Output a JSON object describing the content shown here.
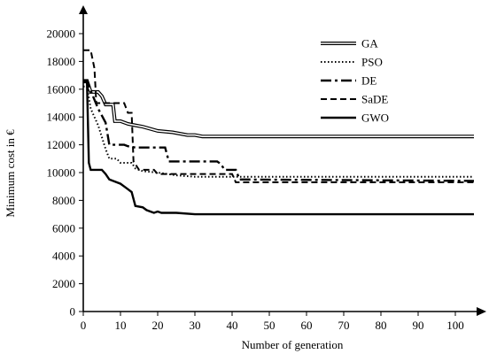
{
  "chart_data": {
    "type": "line",
    "title": "",
    "xlabel": "Number of generation",
    "ylabel": "Minimum cost in €",
    "xlim": [
      0,
      105
    ],
    "ylim": [
      0,
      20000
    ],
    "x_ticks": [
      0,
      10,
      20,
      30,
      40,
      50,
      60,
      70,
      80,
      90,
      100
    ],
    "y_ticks": [
      0,
      2000,
      4000,
      6000,
      8000,
      10000,
      12000,
      14000,
      16000,
      18000,
      20000
    ],
    "grid": false,
    "legend_position": "top-right",
    "series": [
      {
        "name": "GA",
        "style": "double",
        "color": "#000000",
        "points": [
          [
            0,
            16600
          ],
          [
            1,
            16600
          ],
          [
            2,
            15800
          ],
          [
            4,
            15800
          ],
          [
            5,
            15500
          ],
          [
            6,
            14900
          ],
          [
            8,
            14900
          ],
          [
            8.5,
            13700
          ],
          [
            10,
            13700
          ],
          [
            12,
            13500
          ],
          [
            14,
            13400
          ],
          [
            16,
            13300
          ],
          [
            20,
            13000
          ],
          [
            24,
            12900
          ],
          [
            28,
            12700
          ],
          [
            30,
            12700
          ],
          [
            32,
            12600
          ],
          [
            105,
            12600
          ]
        ]
      },
      {
        "name": "PSO",
        "style": "dotted",
        "color": "#000000",
        "points": [
          [
            0,
            16200
          ],
          [
            1,
            16200
          ],
          [
            2,
            14600
          ],
          [
            4,
            13400
          ],
          [
            6,
            11700
          ],
          [
            7,
            11000
          ],
          [
            9,
            11000
          ],
          [
            10,
            10700
          ],
          [
            13,
            10700
          ],
          [
            14,
            10300
          ],
          [
            16,
            10100
          ],
          [
            20,
            10000
          ],
          [
            25,
            9800
          ],
          [
            30,
            9700
          ],
          [
            40,
            9700
          ],
          [
            105,
            9700
          ]
        ]
      },
      {
        "name": "DE",
        "style": "dash-dot",
        "color": "#000000",
        "points": [
          [
            0,
            16600
          ],
          [
            1,
            16600
          ],
          [
            2,
            15900
          ],
          [
            4,
            14600
          ],
          [
            6,
            13600
          ],
          [
            7,
            12000
          ],
          [
            11,
            12000
          ],
          [
            12,
            11900
          ],
          [
            14,
            11800
          ],
          [
            22,
            11800
          ],
          [
            23,
            10800
          ],
          [
            36,
            10800
          ],
          [
            37,
            10600
          ],
          [
            38,
            10200
          ],
          [
            41,
            10200
          ],
          [
            42,
            9500
          ],
          [
            105,
            9400
          ]
        ]
      },
      {
        "name": "SaDE",
        "style": "dashed",
        "color": "#000000",
        "points": [
          [
            0,
            18800
          ],
          [
            2,
            18800
          ],
          [
            3,
            17500
          ],
          [
            3.5,
            15000
          ],
          [
            11,
            15000
          ],
          [
            12,
            14300
          ],
          [
            13,
            14300
          ],
          [
            13.5,
            10800
          ],
          [
            14,
            10600
          ],
          [
            15,
            10200
          ],
          [
            19,
            10200
          ],
          [
            20,
            9900
          ],
          [
            40,
            9900
          ],
          [
            41,
            9300
          ],
          [
            105,
            9300
          ]
        ]
      },
      {
        "name": "GWO",
        "style": "solid",
        "color": "#000000",
        "points": [
          [
            0,
            16500
          ],
          [
            1,
            16500
          ],
          [
            1.5,
            10700
          ],
          [
            2,
            10200
          ],
          [
            5,
            10200
          ],
          [
            6,
            9900
          ],
          [
            7,
            9500
          ],
          [
            8,
            9400
          ],
          [
            10,
            9200
          ],
          [
            11,
            9000
          ],
          [
            12,
            8800
          ],
          [
            13,
            8600
          ],
          [
            14,
            7600
          ],
          [
            16,
            7500
          ],
          [
            17,
            7300
          ],
          [
            19,
            7100
          ],
          [
            20,
            7200
          ],
          [
            21,
            7100
          ],
          [
            25,
            7100
          ],
          [
            30,
            7000
          ],
          [
            105,
            7000
          ]
        ]
      }
    ]
  }
}
